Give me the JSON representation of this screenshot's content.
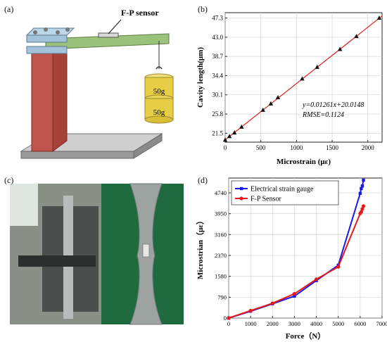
{
  "panels": {
    "a": {
      "label": "(a)",
      "sensor_label": "F-P sensor",
      "weight_label": "50g"
    },
    "b": {
      "label": "(b)"
    },
    "c": {
      "label": "(c)"
    },
    "d": {
      "label": "(d)"
    }
  },
  "chart_data": [
    {
      "panel": "b",
      "type": "scatter",
      "xlabel": "Microstrain (με)",
      "ylabel": "Cavity length(μm)",
      "xlim": [
        0,
        2200
      ],
      "ylim": [
        19.5,
        48.5
      ],
      "xticks": [
        0,
        500,
        1000,
        1500,
        2000
      ],
      "yticks": [
        21.5,
        25.8,
        30.1,
        34.4,
        38.7,
        43.0,
        47.3
      ],
      "ytick_labels": [
        "21.5",
        "25.8",
        "30.1",
        "34.4",
        "38.7",
        "43.0",
        "47.3"
      ],
      "annotations": [
        "y=0.01261x+20.0148",
        "RMSE=0.1124"
      ],
      "fit": {
        "slope": 0.01261,
        "intercept": 20.0148,
        "color": "#e02020"
      },
      "points": [
        [
          0,
          20.0
        ],
        [
          60,
          20.8
        ],
        [
          130,
          21.6
        ],
        [
          230,
          22.9
        ],
        [
          530,
          26.7
        ],
        [
          640,
          28.1
        ],
        [
          740,
          29.5
        ],
        [
          1080,
          33.7
        ],
        [
          1290,
          36.3
        ],
        [
          1610,
          40.3
        ],
        [
          1840,
          43.2
        ],
        [
          2160,
          47.3
        ]
      ],
      "marker_color": "#111111",
      "grid": true
    },
    {
      "panel": "d",
      "type": "line",
      "xlabel": "Force（N）",
      "ylabel": "Microstrian（με）",
      "xlim": [
        0,
        7000
      ],
      "ylim": [
        0,
        5300
      ],
      "xticks": [
        0,
        1000,
        2000,
        3000,
        4000,
        5000,
        6000,
        7000
      ],
      "yticks": [
        0,
        790,
        1580,
        2370,
        3160,
        3950,
        4740
      ],
      "grid": true,
      "legend_position": "top-left",
      "series": [
        {
          "name": "Electrical strain gauge",
          "color": "#1a1ae6",
          "marker": "square",
          "points": [
            [
              0,
              0
            ],
            [
              1000,
              260
            ],
            [
              2000,
              540
            ],
            [
              3000,
              830
            ],
            [
              4000,
              1420
            ],
            [
              5000,
              2000
            ],
            [
              6000,
              4720
            ],
            [
              6050,
              4900
            ],
            [
              6100,
              5000
            ],
            [
              6150,
              5220
            ]
          ]
        },
        {
          "name": "F-P Sensor",
          "color": "#e61a1a",
          "marker": "circle",
          "points": [
            [
              0,
              0
            ],
            [
              1000,
              280
            ],
            [
              2000,
              560
            ],
            [
              3000,
              920
            ],
            [
              4000,
              1470
            ],
            [
              5000,
              1940
            ],
            [
              6000,
              3960
            ],
            [
              6050,
              4020
            ],
            [
              6100,
              4130
            ],
            [
              6150,
              4240
            ]
          ]
        }
      ]
    }
  ]
}
